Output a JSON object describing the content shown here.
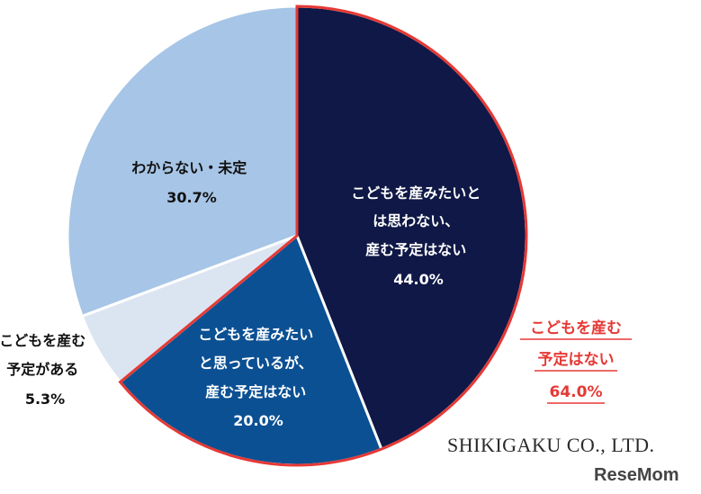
{
  "chart_data": {
    "type": "pie",
    "slices": [
      {
        "lines": [
          "こどもを産みたいと",
          "は思わない、",
          "産む予定はない"
        ],
        "value_label": "44.0%",
        "value": 44.0,
        "color": "#0f1846"
      },
      {
        "lines": [
          "こどもを産みたい",
          "と思っているが、",
          "産む予定はない"
        ],
        "value_label": "20.0%",
        "value": 20.0,
        "color": "#0b5093"
      },
      {
        "lines": [
          "こどもを産む",
          "予定がある"
        ],
        "value_label": "5.3%",
        "value": 5.3,
        "color": "#dbe5f1"
      },
      {
        "lines": [
          "わからない・未定"
        ],
        "value_label": "30.7%",
        "value": 30.7,
        "color": "#a7c5e6"
      }
    ],
    "highlight": {
      "lines": [
        "こどもを産む",
        "予定はない"
      ],
      "value_label": "64.0%",
      "color": "#e53935"
    }
  },
  "footer": {
    "company": "SHIKIGAKU CO., LTD.",
    "watermark": "ReseMom"
  }
}
